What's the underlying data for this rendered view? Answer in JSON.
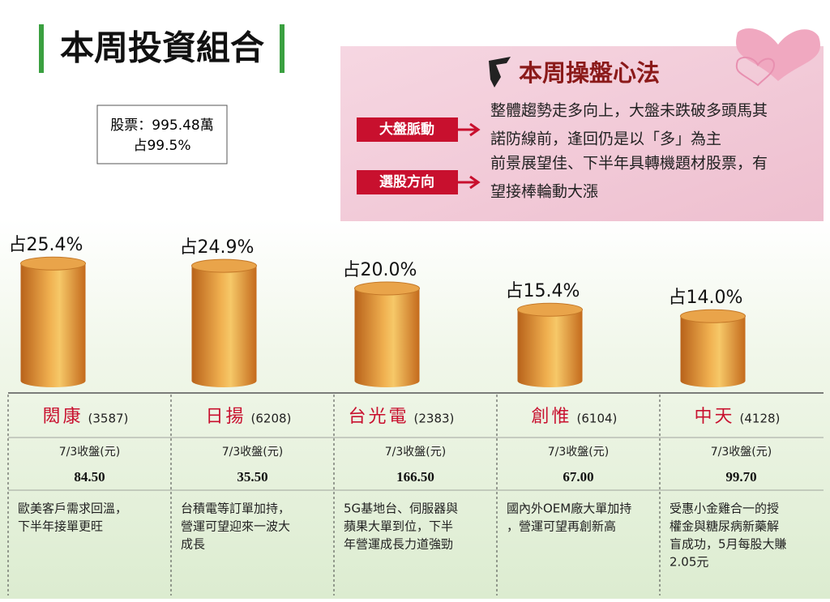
{
  "header": {
    "title": "本周投資組合"
  },
  "summary": {
    "lines": [
      "股票：995.48萬",
      "占99.5%"
    ]
  },
  "strategy": {
    "title": "本周操盤心法",
    "items": [
      {
        "tag": "大盤脈動",
        "lines": [
          "整體趨勢走多向上，大盤未跌破多頭馬其",
          "諾防線前，逢回仍是以「多」為主"
        ]
      },
      {
        "tag": "選股方向",
        "lines": [
          "前景展望佳、下半年具轉機題材股票，有",
          "望接棒輪動大漲"
        ]
      }
    ]
  },
  "chart_data": {
    "type": "bar",
    "categories": [
      "閎康",
      "日揚",
      "台光電",
      "創惟",
      "中天"
    ],
    "values": [
      25.4,
      24.9,
      20.0,
      15.4,
      14.0
    ],
    "value_labels": [
      "占25.4%",
      "占24.9%",
      "占20.0%",
      "占15.4%",
      "占14.0%"
    ],
    "color": "#d9862a"
  },
  "table": {
    "codes": [
      "(3587)",
      "(6208)",
      "(2383)",
      "(6104)",
      "(4128)"
    ],
    "price_label": "7/3收盤(元)",
    "prices": [
      "84.50",
      "35.50",
      "166.50",
      "67.00",
      "99.70"
    ],
    "descriptions": [
      [
        "歐美客戶需求回溫，",
        "下半年接單更旺"
      ],
      [
        "台積電等訂單加持，",
        "營運可望迎來一波大",
        "成長"
      ],
      [
        "5G基地台、伺服器與",
        "蘋果大單到位，下半",
        "年營運成長力道強勁"
      ],
      [
        "國內外OEM廠大單加持",
        "，營運可望再創新高"
      ],
      [
        "受惠小金雞合一的授",
        "權金與糖尿病新藥解",
        "盲成功，5月每股大賺",
        "2.05元"
      ]
    ]
  }
}
